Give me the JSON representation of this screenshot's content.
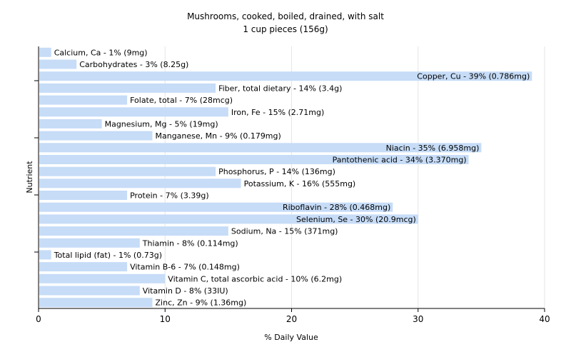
{
  "chart_data": {
    "type": "bar",
    "orientation": "horizontal",
    "title": "Mushrooms, cooked, boiled, drained, with salt",
    "subtitle": "1 cup pieces (156g)",
    "xlabel": "% Daily Value",
    "ylabel": "Nutrient",
    "xlim": [
      0,
      40
    ],
    "xticks": [
      0,
      10,
      20,
      30,
      40
    ],
    "grid": "vertical",
    "bar_color": "#c6dcf7",
    "categories": [
      "Calcium, Ca - 1% (9mg)",
      "Carbohydrates - 3% (8.25g)",
      "Copper, Cu - 39% (0.786mg)",
      "Fiber, total dietary - 14% (3.4g)",
      "Folate, total - 7% (28mcg)",
      "Iron, Fe - 15% (2.71mg)",
      "Magnesium, Mg - 5% (19mg)",
      "Manganese, Mn - 9% (0.179mg)",
      "Niacin - 35% (6.958mg)",
      "Pantothenic acid - 34% (3.370mg)",
      "Phosphorus, P - 14% (136mg)",
      "Potassium, K - 16% (555mg)",
      "Protein - 7% (3.39g)",
      "Riboflavin - 28% (0.468mg)",
      "Selenium, Se - 30% (20.9mcg)",
      "Sodium, Na - 15% (371mg)",
      "Thiamin - 8% (0.114mg)",
      "Total lipid (fat) - 1% (0.73g)",
      "Vitamin B-6 - 7% (0.148mg)",
      "Vitamin C, total ascorbic acid - 10% (6.2mg)",
      "Vitamin D - 8% (33IU)",
      "Zinc, Zn - 9% (1.36mg)"
    ],
    "values": [
      1,
      3,
      39,
      14,
      7,
      15,
      5,
      9,
      35,
      34,
      14,
      16,
      7,
      28,
      30,
      15,
      8,
      1,
      7,
      10,
      8,
      9
    ]
  }
}
